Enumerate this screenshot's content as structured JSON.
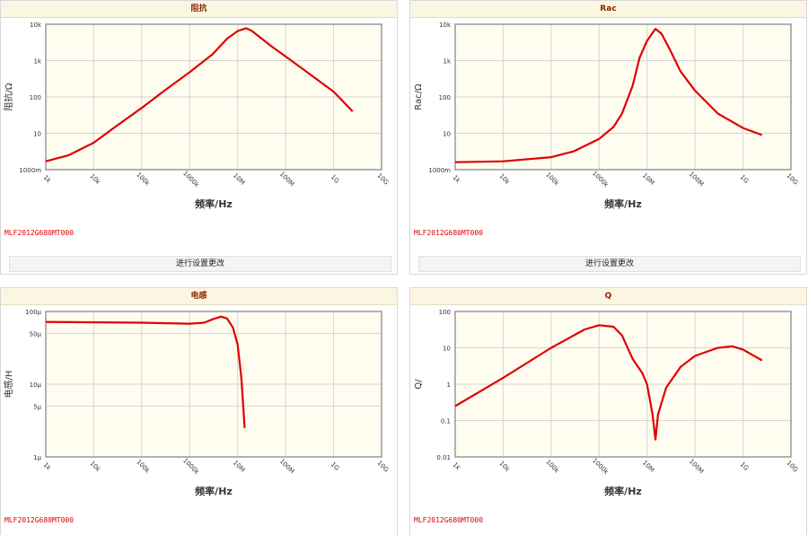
{
  "chart_data": [
    {
      "type": "line",
      "title": "阻抗",
      "x_label": "频率/Hz",
      "y_label": "阻抗/Ω",
      "xscale": "log",
      "yscale": "log",
      "grid": true,
      "color": "#e00000",
      "annotation": "MLF2012G680MT000",
      "button": "进行设置更改",
      "xlim": [
        1000,
        10000000000
      ],
      "ylim": [
        1,
        10000
      ],
      "xticks": [
        {
          "value": 1000,
          "label": "1k"
        },
        {
          "value": 10000,
          "label": "10k"
        },
        {
          "value": 100000,
          "label": "100k"
        },
        {
          "value": 1000000,
          "label": "1000k"
        },
        {
          "value": 10000000,
          "label": "10M"
        },
        {
          "value": 100000000,
          "label": "100M"
        },
        {
          "value": 1000000000,
          "label": "1G"
        },
        {
          "value": 10000000000,
          "label": "10G"
        }
      ],
      "yticks": [
        {
          "value": 1,
          "label": "1000m"
        },
        10,
        100,
        {
          "value": 1000,
          "label": "1k"
        },
        {
          "value": 10000,
          "label": "10k"
        }
      ],
      "x": [
        1000,
        3000,
        10000,
        30000,
        100000,
        300000,
        1000000,
        3000000,
        6000000,
        10000000,
        15000000,
        20000000,
        50000000,
        100000000,
        300000000,
        1000000000,
        2500000000
      ],
      "values": [
        1.7,
        2.5,
        5.5,
        16,
        50,
        150,
        480,
        1500,
        4000,
        6500,
        7800,
        6500,
        2500,
        1300,
        450,
        140,
        40
      ]
    },
    {
      "type": "line",
      "title": "Rac",
      "x_label": "频率/Hz",
      "y_label": "Rac/Ω",
      "xscale": "log",
      "yscale": "log",
      "grid": true,
      "color": "#e00000",
      "annotation": "MLF2012G680MT000",
      "button": "进行设置更改",
      "xlim": [
        1000,
        10000000000
      ],
      "ylim": [
        1,
        10000
      ],
      "xticks": [
        {
          "value": 1000,
          "label": "1k"
        },
        {
          "value": 10000,
          "label": "10k"
        },
        {
          "value": 100000,
          "label": "100k"
        },
        {
          "value": 1000000,
          "label": "1000k"
        },
        {
          "value": 10000000,
          "label": "10M"
        },
        {
          "value": 100000000,
          "label": "100M"
        },
        {
          "value": 1000000000,
          "label": "1G"
        },
        {
          "value": 10000000000,
          "label": "10G"
        }
      ],
      "yticks": [
        {
          "value": 1,
          "label": "1000m"
        },
        10,
        100,
        {
          "value": 1000,
          "label": "1k"
        },
        {
          "value": 10000,
          "label": "10k"
        }
      ],
      "x": [
        1000,
        10000,
        100000,
        300000,
        1000000,
        2000000,
        3000000,
        5000000,
        7000000,
        10000000,
        15000000,
        20000000,
        30000000,
        50000000,
        100000000,
        300000000,
        1000000000,
        2500000000
      ],
      "values": [
        1.6,
        1.7,
        2.2,
        3.2,
        7,
        15,
        35,
        200,
        1200,
        3500,
        7500,
        5500,
        2000,
        500,
        150,
        35,
        14,
        9
      ]
    },
    {
      "type": "line",
      "title": "电感",
      "x_label": "频率/Hz",
      "y_label": "电感/H",
      "xscale": "log",
      "yscale": "log",
      "grid": true,
      "color": "#e00000",
      "annotation": "MLF2012G680MT000",
      "xlim": [
        1000,
        10000000000
      ],
      "ylim": [
        1e-06,
        0.0001
      ],
      "xticks": [
        {
          "value": 1000,
          "label": "1k"
        },
        {
          "value": 10000,
          "label": "10k"
        },
        {
          "value": 100000,
          "label": "100k"
        },
        {
          "value": 1000000,
          "label": "1000k"
        },
        {
          "value": 10000000,
          "label": "10M"
        },
        {
          "value": 100000000,
          "label": "100M"
        },
        {
          "value": 1000000000,
          "label": "1G"
        },
        {
          "value": 10000000000,
          "label": "10G"
        }
      ],
      "yticks": [
        {
          "value": 1e-06,
          "label": "1μ"
        },
        {
          "value": 5e-06,
          "label": "5μ"
        },
        {
          "value": 1e-05,
          "label": "10μ"
        },
        {
          "value": 5e-05,
          "label": "50μ"
        },
        {
          "value": 0.0001,
          "label": "100μ"
        }
      ],
      "x": [
        1000,
        100000,
        1000000,
        2000000,
        3000000,
        4500000,
        6000000,
        8000000,
        10000000,
        12000000,
        14000000
      ],
      "values": [
        7.2e-05,
        7e-05,
        6.8e-05,
        7e-05,
        7.8e-05,
        8.5e-05,
        8e-05,
        6e-05,
        3.5e-05,
        1.2e-05,
        2.5e-06
      ]
    },
    {
      "type": "line",
      "title": "Q",
      "x_label": "频率/Hz",
      "y_label": "Q/",
      "xscale": "log",
      "yscale": "log",
      "grid": true,
      "color": "#e00000",
      "annotation": "MLF2012G680MT000",
      "xlim": [
        1000,
        10000000000
      ],
      "ylim": [
        0.01,
        100
      ],
      "xticks": [
        {
          "value": 1000,
          "label": "1k"
        },
        {
          "value": 10000,
          "label": "10k"
        },
        {
          "value": 100000,
          "label": "100k"
        },
        {
          "value": 1000000,
          "label": "1000k"
        },
        {
          "value": 10000000,
          "label": "10M"
        },
        {
          "value": 100000000,
          "label": "100M"
        },
        {
          "value": 1000000000,
          "label": "1G"
        },
        {
          "value": 10000000000,
          "label": "10G"
        }
      ],
      "yticks": [
        0.01,
        0.1,
        1,
        10,
        100
      ],
      "x": [
        1000,
        10000,
        100000,
        500000,
        1000000,
        2000000,
        3000000,
        5000000,
        8000000,
        10000000,
        13000000,
        15000000,
        17000000,
        25000000,
        50000000,
        100000000,
        300000000,
        600000000,
        1000000000,
        2500000000
      ],
      "values": [
        0.25,
        1.5,
        10,
        32,
        42,
        38,
        22,
        5,
        2,
        1,
        0.15,
        0.03,
        0.15,
        0.8,
        3,
        6,
        10,
        11,
        9,
        4.5
      ]
    }
  ]
}
